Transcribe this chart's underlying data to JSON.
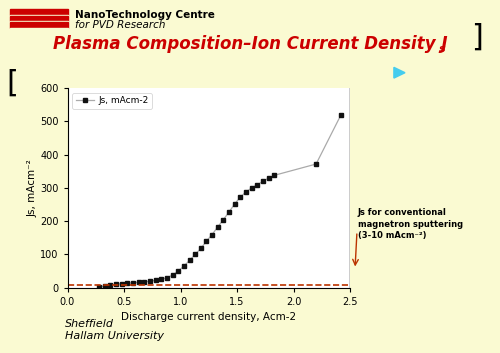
{
  "slide_bg": "#FAFAD2",
  "plot_bg": "#FFFFFF",
  "title_color": "#CC0000",
  "header_text1": "NanoTechnology Centre",
  "header_text2": "for PVD Research",
  "title_main": "Plasma Composition–Ion Current Density J",
  "title_sub": "s",
  "xlabel": "Discharge current density, Acm-2",
  "ylabel": "Js, mAcm⁻²",
  "xlim": [
    0,
    2.5
  ],
  "ylim": [
    0,
    600
  ],
  "xticks": [
    0,
    0.5,
    1.0,
    1.5,
    2.0,
    2.5
  ],
  "yticks": [
    0,
    100,
    200,
    300,
    400,
    500,
    600
  ],
  "x_data": [
    0.28,
    0.33,
    0.38,
    0.43,
    0.48,
    0.53,
    0.58,
    0.63,
    0.68,
    0.73,
    0.78,
    0.83,
    0.88,
    0.93,
    0.98,
    1.03,
    1.08,
    1.13,
    1.18,
    1.23,
    1.28,
    1.33,
    1.38,
    1.43,
    1.48,
    1.53,
    1.58,
    1.63,
    1.68,
    1.73,
    1.78,
    1.83,
    2.2,
    2.42
  ],
  "y_data": [
    2,
    5,
    8,
    10,
    12,
    13,
    15,
    16,
    17,
    20,
    22,
    25,
    30,
    38,
    50,
    65,
    82,
    100,
    118,
    140,
    160,
    183,
    205,
    228,
    252,
    273,
    288,
    300,
    310,
    320,
    330,
    338,
    372,
    520
  ],
  "line_color": "#AAAAAA",
  "marker_color": "#111111",
  "hline_y": 8,
  "hline_color": "#BB3300",
  "legend_label": "Js, mAcm-2",
  "annotation_text": "Js for conventional\nmagnetron sputtering\n(3-10 mAcm⁻²)",
  "arrow_bar_color": "#44CCEE",
  "footer_left": "Sheffield\nHallam University"
}
